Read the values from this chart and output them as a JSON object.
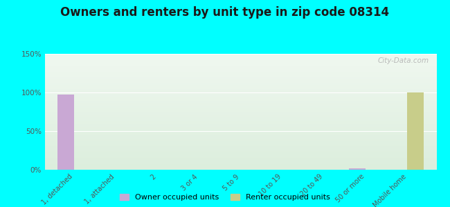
{
  "title": "Owners and renters by unit type in zip code 08314",
  "categories": [
    "1, detached",
    "1, attached",
    "2",
    "3 or 4",
    "5 to 9",
    "10 to 19",
    "20 to 49",
    "50 or more",
    "Mobile home"
  ],
  "owner_values": [
    97,
    0,
    0,
    0,
    0,
    0,
    0,
    2,
    0
  ],
  "renter_values": [
    0,
    0,
    0,
    0,
    0,
    0,
    0,
    0,
    100
  ],
  "owner_color": "#c9a8d4",
  "renter_color": "#c8cd8a",
  "background_color": "#00ffff",
  "plot_bg_top": "#dceedd",
  "plot_bg_bottom": "#f0f8f0",
  "ylabel_ticks": [
    "0%",
    "50%",
    "100%",
    "150%"
  ],
  "ytick_values": [
    0,
    50,
    100,
    150
  ],
  "ylim": [
    0,
    150
  ],
  "bar_width": 0.4,
  "title_fontsize": 12,
  "watermark": "City-Data.com",
  "legend_labels": [
    "Owner occupied units",
    "Renter occupied units"
  ]
}
